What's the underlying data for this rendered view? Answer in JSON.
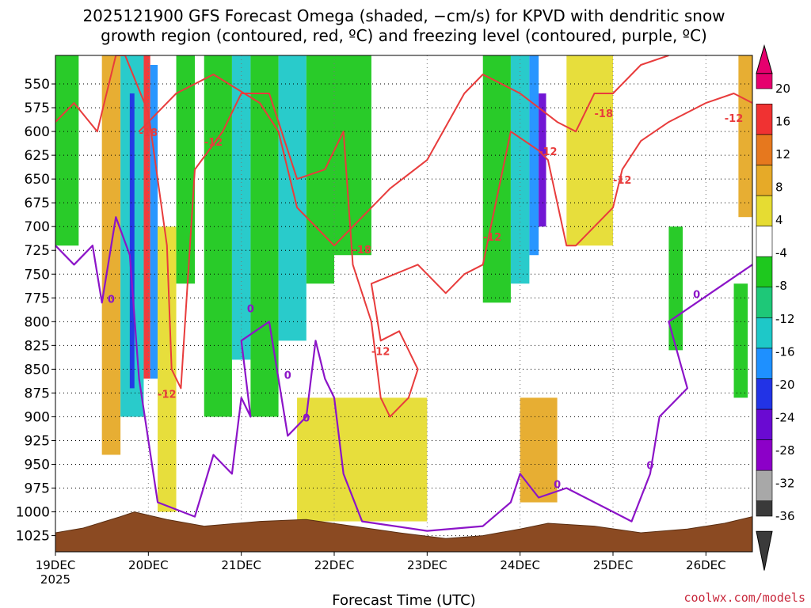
{
  "chart_data": {
    "type": "heatmap",
    "title_line1": "2025121900 GFS Forecast Omega (shaded, −cm/s) for KPVD with dendritic snow",
    "title_line2": "growth region (contoured, red, ºC) and freezing level (contoured, purple, ºC)",
    "xlabel": "Forecast Time (UTC)",
    "credit": "coolwx.com/models",
    "x_ticks": [
      "19DEC",
      "20DEC",
      "21DEC",
      "22DEC",
      "23DEC",
      "24DEC",
      "25DEC",
      "26DEC"
    ],
    "x_year": "2025",
    "x_range_days": [
      0,
      7.5
    ],
    "y_ticks": [
      550,
      575,
      600,
      625,
      650,
      675,
      700,
      725,
      750,
      775,
      800,
      825,
      850,
      875,
      900,
      925,
      950,
      975,
      1000,
      1025
    ],
    "y_tick_labels": [
      "550",
      "575",
      "600",
      "625",
      "650",
      "675",
      "700",
      "725",
      "750",
      "775",
      "800",
      "825",
      "850",
      "875",
      "900",
      "925",
      "950",
      "975",
      "1000",
      "1025"
    ],
    "y_range_hpa": [
      520,
      1042
    ],
    "colorbar": {
      "tick_values": [
        "20",
        "16",
        "12",
        "8",
        "4",
        "-4",
        "-8",
        "-12",
        "-16",
        "-20",
        "-24",
        "-28",
        "-32",
        "-36"
      ],
      "colors": [
        "#3a3a3a",
        "#a8a8a8",
        "#8c00c8",
        "#6a0ad2",
        "#2233e6",
        "#1e90ff",
        "#1ec8c8",
        "#1ec878",
        "#1ec81e",
        "#ffffff",
        "#e6dc32",
        "#e6aa28",
        "#e6781e",
        "#f03232",
        "#e6006e"
      ]
    },
    "contour_labels": [
      {
        "text": "-12",
        "color": "#e83c3c"
      },
      {
        "text": "-18",
        "color": "#e83c3c"
      },
      {
        "text": "0",
        "color": "#8c14c8"
      }
    ],
    "series": [
      {
        "name": "omega_shading",
        "unit": "-cm/s",
        "bands": [
          {
            "x0": 0.0,
            "x1": 0.25,
            "p0": 520,
            "p1": 720,
            "value": -8
          },
          {
            "x0": 0.5,
            "x1": 0.7,
            "p0": 520,
            "p1": 940,
            "value": 8
          },
          {
            "x0": 0.7,
            "x1": 0.95,
            "p0": 520,
            "p1": 900,
            "value": -12
          },
          {
            "x0": 0.8,
            "x1": 0.85,
            "p0": 560,
            "p1": 870,
            "value": -20
          },
          {
            "x0": 0.95,
            "x1": 1.02,
            "p0": 520,
            "p1": 860,
            "value": 16
          },
          {
            "x0": 1.02,
            "x1": 1.1,
            "p0": 530,
            "p1": 860,
            "value": -16
          },
          {
            "x0": 1.1,
            "x1": 1.3,
            "p0": 700,
            "p1": 1000,
            "value": 4
          },
          {
            "x0": 1.3,
            "x1": 1.5,
            "p0": 520,
            "p1": 760,
            "value": -8
          },
          {
            "x0": 1.6,
            "x1": 1.9,
            "p0": 520,
            "p1": 900,
            "value": -8
          },
          {
            "x0": 1.9,
            "x1": 2.1,
            "p0": 520,
            "p1": 840,
            "value": -12
          },
          {
            "x0": 2.1,
            "x1": 2.4,
            "p0": 520,
            "p1": 900,
            "value": -8
          },
          {
            "x0": 2.4,
            "x1": 2.7,
            "p0": 520,
            "p1": 820,
            "value": -12
          },
          {
            "x0": 2.7,
            "x1": 3.0,
            "p0": 520,
            "p1": 760,
            "value": -8
          },
          {
            "x0": 2.6,
            "x1": 4.0,
            "p0": 880,
            "p1": 1010,
            "value": 4
          },
          {
            "x0": 3.0,
            "x1": 3.4,
            "p0": 520,
            "p1": 730,
            "value": -8
          },
          {
            "x0": 4.6,
            "x1": 4.9,
            "p0": 520,
            "p1": 780,
            "value": -8
          },
          {
            "x0": 4.9,
            "x1": 5.1,
            "p0": 520,
            "p1": 760,
            "value": -12
          },
          {
            "x0": 5.1,
            "x1": 5.2,
            "p0": 520,
            "p1": 730,
            "value": -16
          },
          {
            "x0": 5.2,
            "x1": 5.28,
            "p0": 560,
            "p1": 700,
            "value": -24
          },
          {
            "x0": 5.0,
            "x1": 5.4,
            "p0": 880,
            "p1": 990,
            "value": 8
          },
          {
            "x0": 5.5,
            "x1": 6.0,
            "p0": 520,
            "p1": 720,
            "value": 4
          },
          {
            "x0": 6.6,
            "x1": 6.75,
            "p0": 700,
            "p1": 830,
            "value": -8
          },
          {
            "x0": 7.3,
            "x1": 7.45,
            "p0": 760,
            "p1": 880,
            "value": -8
          },
          {
            "x0": 7.35,
            "x1": 7.5,
            "p0": 520,
            "p1": 690,
            "value": 8
          }
        ]
      },
      {
        "name": "dendritic_contour_minus12",
        "unit": "C",
        "points": [
          [
            0.0,
            590
          ],
          [
            0.2,
            570
          ],
          [
            0.45,
            600
          ],
          [
            0.65,
            520
          ],
          [
            0.75,
            520
          ],
          [
            1.0,
            580
          ],
          [
            1.2,
            720
          ],
          [
            1.25,
            850
          ],
          [
            1.35,
            870
          ],
          [
            1.5,
            640
          ],
          [
            1.8,
            600
          ],
          [
            2.0,
            560
          ],
          [
            2.3,
            560
          ],
          [
            2.6,
            650
          ],
          [
            2.9,
            640
          ],
          [
            3.1,
            600
          ],
          [
            3.2,
            740
          ],
          [
            3.4,
            800
          ],
          [
            3.5,
            880
          ],
          [
            3.6,
            900
          ],
          [
            3.8,
            880
          ],
          [
            3.9,
            850
          ],
          [
            3.7,
            810
          ],
          [
            3.5,
            820
          ],
          [
            3.4,
            760
          ],
          [
            3.9,
            740
          ],
          [
            4.2,
            770
          ],
          [
            4.4,
            750
          ],
          [
            4.6,
            740
          ],
          [
            4.9,
            600
          ],
          [
            5.2,
            620
          ],
          [
            5.3,
            630
          ],
          [
            5.5,
            720
          ],
          [
            5.6,
            720
          ],
          [
            5.8,
            700
          ],
          [
            6.0,
            680
          ],
          [
            6.1,
            640
          ],
          [
            6.3,
            610
          ],
          [
            6.6,
            590
          ],
          [
            7.0,
            570
          ],
          [
            7.3,
            560
          ],
          [
            7.5,
            570
          ]
        ]
      },
      {
        "name": "dendritic_contour_minus18",
        "unit": "C",
        "points": [
          [
            0.9,
            600
          ],
          [
            1.3,
            560
          ],
          [
            1.7,
            540
          ],
          [
            2.2,
            570
          ],
          [
            2.4,
            600
          ],
          [
            2.6,
            680
          ],
          [
            3.0,
            720
          ],
          [
            3.2,
            700
          ],
          [
            3.6,
            660
          ],
          [
            4.0,
            630
          ],
          [
            4.4,
            560
          ],
          [
            4.6,
            540
          ],
          [
            5.0,
            560
          ],
          [
            5.4,
            590
          ],
          [
            5.6,
            600
          ],
          [
            5.8,
            560
          ],
          [
            6.0,
            560
          ],
          [
            6.3,
            530
          ],
          [
            6.6,
            520
          ]
        ]
      },
      {
        "name": "freezing_level_contour_0",
        "unit": "C",
        "points": [
          [
            0.0,
            720
          ],
          [
            0.2,
            740
          ],
          [
            0.4,
            720
          ],
          [
            0.5,
            780
          ],
          [
            0.65,
            690
          ],
          [
            0.8,
            730
          ],
          [
            0.9,
            860
          ],
          [
            1.1,
            990
          ],
          [
            1.5,
            1005
          ],
          [
            1.7,
            940
          ],
          [
            1.9,
            960
          ],
          [
            2.0,
            880
          ],
          [
            2.1,
            900
          ],
          [
            2.0,
            820
          ],
          [
            2.3,
            800
          ],
          [
            2.4,
            860
          ],
          [
            2.5,
            920
          ],
          [
            2.7,
            900
          ],
          [
            2.8,
            820
          ],
          [
            2.9,
            860
          ],
          [
            3.0,
            880
          ],
          [
            3.1,
            960
          ],
          [
            3.3,
            1010
          ],
          [
            4.0,
            1020
          ],
          [
            4.6,
            1015
          ],
          [
            4.9,
            990
          ],
          [
            5.0,
            960
          ],
          [
            5.2,
            985
          ],
          [
            5.5,
            975
          ],
          [
            5.8,
            990
          ],
          [
            6.2,
            1010
          ],
          [
            6.4,
            960
          ],
          [
            6.5,
            900
          ],
          [
            6.8,
            870
          ],
          [
            6.6,
            800
          ],
          [
            6.9,
            780
          ],
          [
            7.2,
            760
          ],
          [
            7.5,
            740
          ]
        ]
      },
      {
        "name": "terrain_surface",
        "unit": "hPa",
        "points": [
          [
            0.0,
            1022
          ],
          [
            0.3,
            1017
          ],
          [
            0.7,
            1005
          ],
          [
            0.85,
            1000
          ],
          [
            1.2,
            1008
          ],
          [
            1.6,
            1015
          ],
          [
            2.2,
            1010
          ],
          [
            2.7,
            1008
          ],
          [
            3.2,
            1015
          ],
          [
            3.7,
            1022
          ],
          [
            4.2,
            1028
          ],
          [
            4.6,
            1025
          ],
          [
            5.0,
            1018
          ],
          [
            5.3,
            1012
          ],
          [
            5.8,
            1015
          ],
          [
            6.3,
            1022
          ],
          [
            6.8,
            1018
          ],
          [
            7.2,
            1012
          ],
          [
            7.5,
            1005
          ]
        ]
      }
    ]
  }
}
